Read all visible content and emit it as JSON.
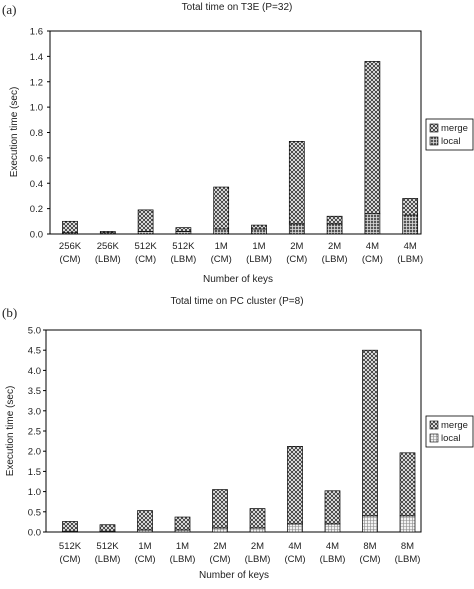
{
  "chart_data": [
    {
      "type": "bar",
      "stacked": true,
      "panel_label": "(a)",
      "title": "Total time on T3E (P=32)",
      "xlabel": "Number of keys",
      "ylabel": "Execution time (sec)",
      "ylim": [
        0,
        1.6
      ],
      "yticks": [
        "0.0",
        "0.2",
        "0.4",
        "0.6",
        "0.8",
        "1.0",
        "1.2",
        "1.4",
        "1.6"
      ],
      "categories": [
        [
          "256K",
          "(CM)"
        ],
        [
          "256K",
          "(LBM)"
        ],
        [
          "512K",
          "(CM)"
        ],
        [
          "512K",
          "(LBM)"
        ],
        [
          "1M",
          "(CM)"
        ],
        [
          "1M",
          "(LBM)"
        ],
        [
          "2M",
          "(CM)"
        ],
        [
          "2M",
          "(LBM)"
        ],
        [
          "4M",
          "(CM)"
        ],
        [
          "4M",
          "(LBM)"
        ]
      ],
      "series": [
        {
          "name": "local",
          "values": [
            0.01,
            0.01,
            0.02,
            0.02,
            0.04,
            0.04,
            0.08,
            0.08,
            0.16,
            0.15
          ]
        },
        {
          "name": "merge",
          "values": [
            0.09,
            0.01,
            0.17,
            0.03,
            0.33,
            0.03,
            0.65,
            0.06,
            1.2,
            0.13
          ]
        }
      ],
      "legend": [
        "merge",
        "local"
      ],
      "legend_position": "right",
      "grid": false
    },
    {
      "type": "bar",
      "stacked": true,
      "panel_label": "(b)",
      "title": "Total time on PC cluster (P=8)",
      "xlabel": "Number of keys",
      "ylabel": "Execution time (sec)",
      "ylim": [
        0,
        5.0
      ],
      "yticks": [
        "0.0",
        "0.5",
        "1.0",
        "1.5",
        "2.0",
        "2.5",
        "3.0",
        "3.5",
        "4.0",
        "4.5",
        "5.0"
      ],
      "categories": [
        [
          "512K",
          "(CM)"
        ],
        [
          "512K",
          "(LBM)"
        ],
        [
          "1M",
          "(CM)"
        ],
        [
          "1M",
          "(LBM)"
        ],
        [
          "2M",
          "(CM)"
        ],
        [
          "2M",
          "(LBM)"
        ],
        [
          "4M",
          "(CM)"
        ],
        [
          "4M",
          "(LBM)"
        ],
        [
          "8M",
          "(CM)"
        ],
        [
          "8M",
          "(LBM)"
        ]
      ],
      "series": [
        {
          "name": "local",
          "values": [
            0.02,
            0.02,
            0.05,
            0.05,
            0.1,
            0.1,
            0.2,
            0.2,
            0.4,
            0.4
          ]
        },
        {
          "name": "merge",
          "values": [
            0.24,
            0.16,
            0.48,
            0.32,
            0.95,
            0.48,
            1.92,
            0.82,
            4.1,
            1.56
          ]
        }
      ],
      "legend": [
        "merge",
        "local"
      ],
      "legend_position": "right",
      "grid": false
    }
  ]
}
